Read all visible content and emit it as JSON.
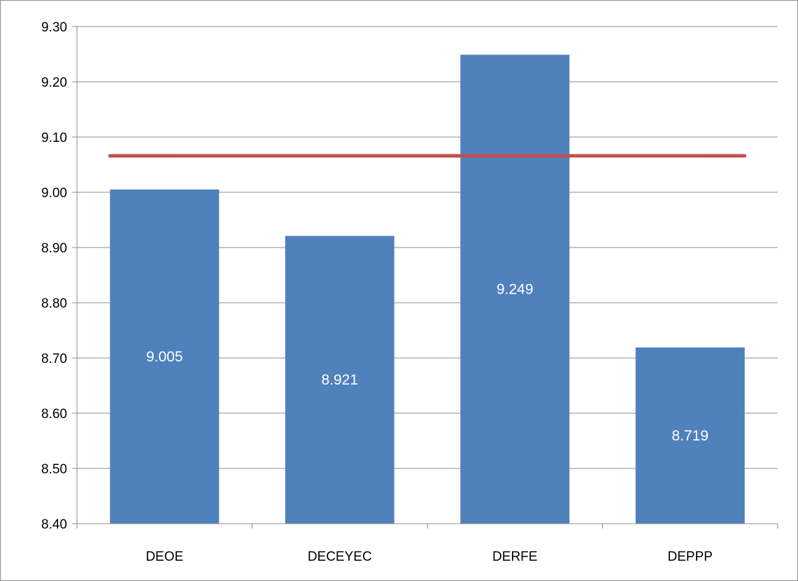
{
  "chart_data": {
    "type": "bar",
    "title": "",
    "xlabel": "",
    "ylabel": "",
    "categories": [
      "DEOE",
      "DECEYEC",
      "DERFE",
      "DEPPP"
    ],
    "values": [
      9.005,
      8.921,
      9.249,
      8.719
    ],
    "data_labels": [
      "9.005",
      "8.921",
      "9.249",
      "8.719"
    ],
    "ylim": [
      8.4,
      9.3
    ],
    "yticks": [
      "8.40",
      "8.50",
      "8.60",
      "8.70",
      "8.80",
      "8.90",
      "9.00",
      "9.10",
      "9.20",
      "9.30"
    ],
    "reference_line": 9.066,
    "grid": true,
    "legend": "none",
    "colors": {
      "bar": "#4f81bd",
      "reference_line": "#c0504d",
      "grid": "#8c8c8c"
    }
  }
}
